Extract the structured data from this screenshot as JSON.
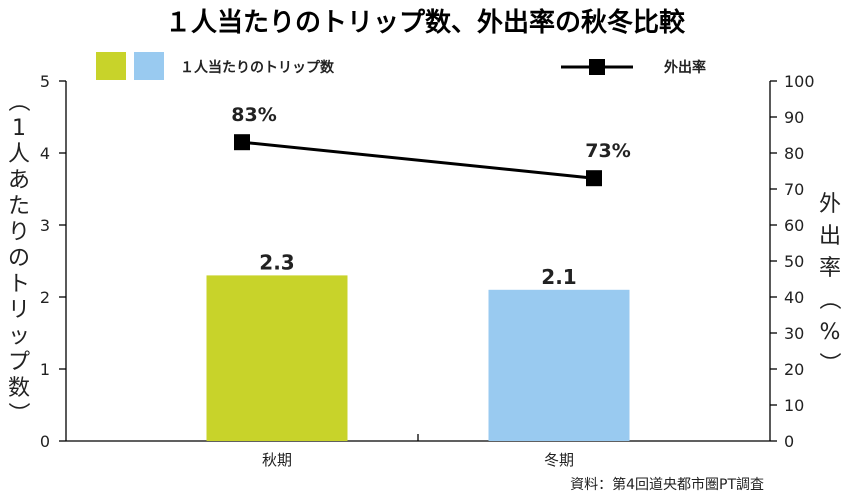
{
  "chart_data": {
    "type": "bar+line",
    "title": "１人当たりのトリップ数、外出率の秋冬比較",
    "categories": [
      "秋期",
      "冬期"
    ],
    "bars": {
      "name": "１人当たりのトリップ数",
      "values": [
        2.3,
        2.1
      ],
      "value_labels": [
        "2.3",
        "2.1"
      ],
      "colors": [
        "#c8d32a",
        "#99caf0"
      ],
      "axis": "left"
    },
    "line": {
      "name": "外出率",
      "values": [
        83,
        73
      ],
      "value_labels": [
        "83%",
        "73%"
      ],
      "color": "#000000",
      "marker": "square",
      "axis": "right"
    },
    "left_axis": {
      "label_chars": [
        "（",
        "1",
        "人",
        "あ",
        "た",
        "り",
        "の",
        "ト",
        "リ",
        "ッ",
        "プ",
        "数",
        "）"
      ],
      "ylim": [
        0,
        5
      ],
      "ticks": [
        "0",
        "1",
        "2",
        "3",
        "4",
        "5"
      ]
    },
    "right_axis": {
      "label_chars": [
        "外",
        "出",
        "率",
        "（",
        "%",
        "）"
      ],
      "ylim": [
        0,
        100
      ],
      "ticks": [
        "0",
        "10",
        "20",
        "30",
        "40",
        "50",
        "60",
        "70",
        "80",
        "90",
        "100"
      ]
    },
    "legend_placement": "top",
    "grid": false,
    "source": "資料：第4回道央都市圏PT調査"
  }
}
